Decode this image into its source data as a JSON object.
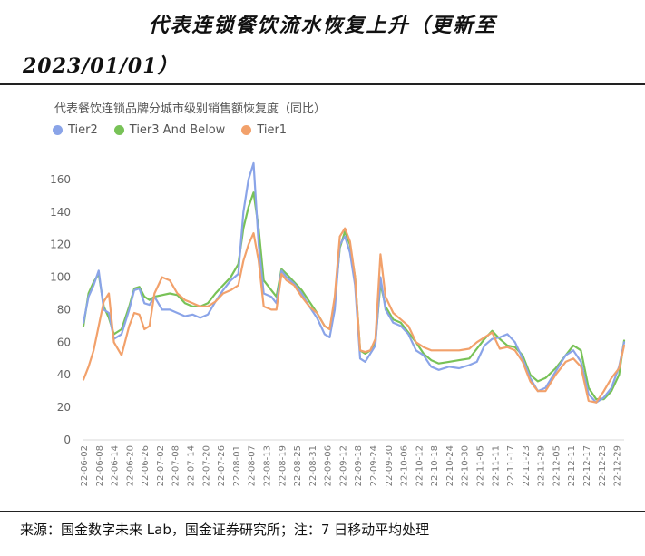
{
  "header": {
    "title_line1": "代表连锁餐饮流水恢复上升（更新至",
    "title_line2": "2023/01/01）"
  },
  "footer": {
    "source": "来源：国金数字未来 Lab，国金证券研究所；注：7 日移动平均处理"
  },
  "colors": {
    "tier2": "#8aa4e8",
    "tier3": "#78c257",
    "tier1": "#f2a16b"
  },
  "chart_data": {
    "type": "line",
    "title": "代表餐饮连锁品牌分城市级别销售额恢复度（同比）",
    "xlabel": "",
    "ylabel": "",
    "ylim": [
      0,
      180
    ],
    "yticks": [
      0,
      20,
      40,
      60,
      80,
      100,
      120,
      140,
      160
    ],
    "grid": false,
    "legend_position": "top-left",
    "x_start": "2022-06-02",
    "x_end": "2023-01-01",
    "x_tick_labels": [
      "22-06-02",
      "22-06-08",
      "22-06-14",
      "22-06-20",
      "22-06-26",
      "22-07-02",
      "22-07-08",
      "22-07-14",
      "22-07-20",
      "22-07-26",
      "22-08-01",
      "22-08-07",
      "22-08-13",
      "22-08-19",
      "22-08-25",
      "22-08-31",
      "22-09-06",
      "22-09-12",
      "22-09-18",
      "22-09-24",
      "22-09-30",
      "22-10-06",
      "22-10-12",
      "22-10-18",
      "22-10-24",
      "22-10-30",
      "22-11-05",
      "22-11-11",
      "22-11-17",
      "22-11-23",
      "22-11-29",
      "22-12-05",
      "22-12-11",
      "22-12-17",
      "22-12-23",
      "22-12-29"
    ],
    "series": [
      {
        "name": "Tier2",
        "points": [
          [
            "2022-06-02",
            72
          ],
          [
            "2022-06-04",
            88
          ],
          [
            "2022-06-06",
            95
          ],
          [
            "2022-06-08",
            104
          ],
          [
            "2022-06-10",
            80
          ],
          [
            "2022-06-12",
            78
          ],
          [
            "2022-06-14",
            62
          ],
          [
            "2022-06-17",
            65
          ],
          [
            "2022-06-20",
            80
          ],
          [
            "2022-06-22",
            92
          ],
          [
            "2022-06-24",
            93
          ],
          [
            "2022-06-26",
            84
          ],
          [
            "2022-06-28",
            83
          ],
          [
            "2022-06-30",
            88
          ],
          [
            "2022-07-03",
            80
          ],
          [
            "2022-07-06",
            80
          ],
          [
            "2022-07-09",
            78
          ],
          [
            "2022-07-12",
            76
          ],
          [
            "2022-07-15",
            77
          ],
          [
            "2022-07-18",
            75
          ],
          [
            "2022-07-21",
            77
          ],
          [
            "2022-07-24",
            85
          ],
          [
            "2022-07-27",
            92
          ],
          [
            "2022-07-30",
            98
          ],
          [
            "2022-08-02",
            102
          ],
          [
            "2022-08-04",
            140
          ],
          [
            "2022-08-06",
            160
          ],
          [
            "2022-08-08",
            170
          ],
          [
            "2022-08-10",
            120
          ],
          [
            "2022-08-12",
            90
          ],
          [
            "2022-08-15",
            88
          ],
          [
            "2022-08-17",
            84
          ],
          [
            "2022-08-19",
            104
          ],
          [
            "2022-08-21",
            100
          ],
          [
            "2022-08-24",
            96
          ],
          [
            "2022-08-27",
            90
          ],
          [
            "2022-08-30",
            82
          ],
          [
            "2022-09-02",
            75
          ],
          [
            "2022-09-05",
            65
          ],
          [
            "2022-09-07",
            63
          ],
          [
            "2022-09-09",
            80
          ],
          [
            "2022-09-11",
            120
          ],
          [
            "2022-09-13",
            125
          ],
          [
            "2022-09-15",
            115
          ],
          [
            "2022-09-17",
            95
          ],
          [
            "2022-09-19",
            50
          ],
          [
            "2022-09-21",
            48
          ],
          [
            "2022-09-23",
            53
          ],
          [
            "2022-09-25",
            58
          ],
          [
            "2022-09-27",
            100
          ],
          [
            "2022-09-29",
            80
          ],
          [
            "2022-10-02",
            72
          ],
          [
            "2022-10-05",
            70
          ],
          [
            "2022-10-08",
            65
          ],
          [
            "2022-10-11",
            55
          ],
          [
            "2022-10-14",
            52
          ],
          [
            "2022-10-17",
            45
          ],
          [
            "2022-10-20",
            43
          ],
          [
            "2022-10-24",
            45
          ],
          [
            "2022-10-28",
            44
          ],
          [
            "2022-11-01",
            46
          ],
          [
            "2022-11-04",
            48
          ],
          [
            "2022-11-07",
            58
          ],
          [
            "2022-11-10",
            62
          ],
          [
            "2022-11-13",
            63
          ],
          [
            "2022-11-16",
            65
          ],
          [
            "2022-11-19",
            60
          ],
          [
            "2022-11-22",
            50
          ],
          [
            "2022-11-25",
            38
          ],
          [
            "2022-11-28",
            30
          ],
          [
            "2022-12-01",
            32
          ],
          [
            "2022-12-05",
            42
          ],
          [
            "2022-12-09",
            52
          ],
          [
            "2022-12-12",
            55
          ],
          [
            "2022-12-15",
            48
          ],
          [
            "2022-12-18",
            28
          ],
          [
            "2022-12-21",
            23
          ],
          [
            "2022-12-24",
            26
          ],
          [
            "2022-12-27",
            32
          ],
          [
            "2022-12-30",
            45
          ],
          [
            "2023-01-01",
            60
          ]
        ]
      },
      {
        "name": "Tier3 And Below",
        "points": [
          [
            "2022-06-02",
            70
          ],
          [
            "2022-06-04",
            90
          ],
          [
            "2022-06-06",
            97
          ],
          [
            "2022-06-08",
            102
          ],
          [
            "2022-06-10",
            82
          ],
          [
            "2022-06-12",
            75
          ],
          [
            "2022-06-14",
            65
          ],
          [
            "2022-06-17",
            68
          ],
          [
            "2022-06-20",
            82
          ],
          [
            "2022-06-22",
            93
          ],
          [
            "2022-06-24",
            94
          ],
          [
            "2022-06-26",
            88
          ],
          [
            "2022-06-28",
            86
          ],
          [
            "2022-06-30",
            88
          ],
          [
            "2022-07-03",
            89
          ],
          [
            "2022-07-06",
            90
          ],
          [
            "2022-07-09",
            89
          ],
          [
            "2022-07-12",
            84
          ],
          [
            "2022-07-15",
            82
          ],
          [
            "2022-07-18",
            82
          ],
          [
            "2022-07-21",
            84
          ],
          [
            "2022-07-24",
            90
          ],
          [
            "2022-07-27",
            95
          ],
          [
            "2022-07-30",
            100
          ],
          [
            "2022-08-02",
            108
          ],
          [
            "2022-08-04",
            130
          ],
          [
            "2022-08-06",
            143
          ],
          [
            "2022-08-08",
            152
          ],
          [
            "2022-08-10",
            130
          ],
          [
            "2022-08-12",
            98
          ],
          [
            "2022-08-15",
            92
          ],
          [
            "2022-08-17",
            88
          ],
          [
            "2022-08-19",
            105
          ],
          [
            "2022-08-21",
            102
          ],
          [
            "2022-08-24",
            97
          ],
          [
            "2022-08-27",
            92
          ],
          [
            "2022-08-30",
            85
          ],
          [
            "2022-09-02",
            78
          ],
          [
            "2022-09-05",
            70
          ],
          [
            "2022-09-07",
            68
          ],
          [
            "2022-09-09",
            85
          ],
          [
            "2022-09-11",
            118
          ],
          [
            "2022-09-13",
            128
          ],
          [
            "2022-09-15",
            120
          ],
          [
            "2022-09-17",
            100
          ],
          [
            "2022-09-19",
            55
          ],
          [
            "2022-09-21",
            53
          ],
          [
            "2022-09-23",
            55
          ],
          [
            "2022-09-25",
            60
          ],
          [
            "2022-09-27",
            96
          ],
          [
            "2022-09-29",
            82
          ],
          [
            "2022-10-02",
            74
          ],
          [
            "2022-10-05",
            72
          ],
          [
            "2022-10-08",
            66
          ],
          [
            "2022-10-11",
            60
          ],
          [
            "2022-10-14",
            53
          ],
          [
            "2022-10-17",
            49
          ],
          [
            "2022-10-20",
            47
          ],
          [
            "2022-10-24",
            48
          ],
          [
            "2022-10-28",
            49
          ],
          [
            "2022-11-01",
            50
          ],
          [
            "2022-11-04",
            56
          ],
          [
            "2022-11-07",
            62
          ],
          [
            "2022-11-10",
            67
          ],
          [
            "2022-11-13",
            62
          ],
          [
            "2022-11-16",
            58
          ],
          [
            "2022-11-19",
            57
          ],
          [
            "2022-11-22",
            52
          ],
          [
            "2022-11-25",
            40
          ],
          [
            "2022-11-28",
            36
          ],
          [
            "2022-12-01",
            38
          ],
          [
            "2022-12-05",
            44
          ],
          [
            "2022-12-09",
            52
          ],
          [
            "2022-12-12",
            58
          ],
          [
            "2022-12-15",
            55
          ],
          [
            "2022-12-18",
            32
          ],
          [
            "2022-12-21",
            25
          ],
          [
            "2022-12-24",
            25
          ],
          [
            "2022-12-27",
            30
          ],
          [
            "2022-12-30",
            40
          ],
          [
            "2023-01-01",
            61
          ]
        ]
      },
      {
        "name": "Tier1",
        "points": [
          [
            "2022-06-02",
            37
          ],
          [
            "2022-06-04",
            45
          ],
          [
            "2022-06-06",
            55
          ],
          [
            "2022-06-08",
            70
          ],
          [
            "2022-06-10",
            85
          ],
          [
            "2022-06-12",
            90
          ],
          [
            "2022-06-14",
            60
          ],
          [
            "2022-06-17",
            52
          ],
          [
            "2022-06-20",
            70
          ],
          [
            "2022-06-22",
            78
          ],
          [
            "2022-06-24",
            77
          ],
          [
            "2022-06-26",
            68
          ],
          [
            "2022-06-28",
            70
          ],
          [
            "2022-06-30",
            90
          ],
          [
            "2022-07-03",
            100
          ],
          [
            "2022-07-06",
            98
          ],
          [
            "2022-07-09",
            90
          ],
          [
            "2022-07-12",
            86
          ],
          [
            "2022-07-15",
            84
          ],
          [
            "2022-07-18",
            82
          ],
          [
            "2022-07-21",
            82
          ],
          [
            "2022-07-24",
            85
          ],
          [
            "2022-07-27",
            90
          ],
          [
            "2022-07-30",
            92
          ],
          [
            "2022-08-02",
            95
          ],
          [
            "2022-08-04",
            110
          ],
          [
            "2022-08-06",
            120
          ],
          [
            "2022-08-08",
            127
          ],
          [
            "2022-08-10",
            110
          ],
          [
            "2022-08-12",
            82
          ],
          [
            "2022-08-15",
            80
          ],
          [
            "2022-08-17",
            80
          ],
          [
            "2022-08-19",
            102
          ],
          [
            "2022-08-21",
            98
          ],
          [
            "2022-08-24",
            95
          ],
          [
            "2022-08-27",
            88
          ],
          [
            "2022-08-30",
            82
          ],
          [
            "2022-09-02",
            78
          ],
          [
            "2022-09-05",
            70
          ],
          [
            "2022-09-07",
            68
          ],
          [
            "2022-09-09",
            88
          ],
          [
            "2022-09-11",
            125
          ],
          [
            "2022-09-13",
            130
          ],
          [
            "2022-09-15",
            122
          ],
          [
            "2022-09-17",
            100
          ],
          [
            "2022-09-19",
            55
          ],
          [
            "2022-09-21",
            54
          ],
          [
            "2022-09-23",
            55
          ],
          [
            "2022-09-25",
            62
          ],
          [
            "2022-09-27",
            114
          ],
          [
            "2022-09-29",
            88
          ],
          [
            "2022-10-02",
            78
          ],
          [
            "2022-10-05",
            74
          ],
          [
            "2022-10-08",
            70
          ],
          [
            "2022-10-11",
            60
          ],
          [
            "2022-10-14",
            57
          ],
          [
            "2022-10-17",
            55
          ],
          [
            "2022-10-20",
            55
          ],
          [
            "2022-10-24",
            55
          ],
          [
            "2022-10-28",
            55
          ],
          [
            "2022-11-01",
            56
          ],
          [
            "2022-11-04",
            60
          ],
          [
            "2022-11-07",
            63
          ],
          [
            "2022-11-10",
            66
          ],
          [
            "2022-11-13",
            56
          ],
          [
            "2022-11-16",
            57
          ],
          [
            "2022-11-19",
            55
          ],
          [
            "2022-11-22",
            48
          ],
          [
            "2022-11-25",
            36
          ],
          [
            "2022-11-28",
            30
          ],
          [
            "2022-12-01",
            30
          ],
          [
            "2022-12-05",
            40
          ],
          [
            "2022-12-09",
            48
          ],
          [
            "2022-12-12",
            50
          ],
          [
            "2022-12-15",
            45
          ],
          [
            "2022-12-18",
            24
          ],
          [
            "2022-12-21",
            23
          ],
          [
            "2022-12-24",
            30
          ],
          [
            "2022-12-27",
            38
          ],
          [
            "2022-12-30",
            44
          ],
          [
            "2023-01-01",
            58
          ]
        ]
      }
    ]
  }
}
